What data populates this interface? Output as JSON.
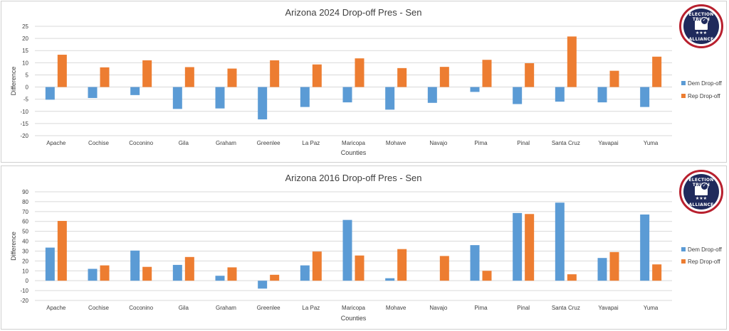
{
  "charts": [
    {
      "id": "top",
      "logo_text": {
        "top": "ELECTION TRUTH",
        "bottom": "ALLIANCE",
        "icon": "ballot-box-icon"
      },
      "chart_data": {
        "type": "bar",
        "title": "Arizona 2024 Drop-off Pres - Sen",
        "xlabel": "Counties",
        "ylabel": "Difference",
        "ylim": [
          -20,
          25
        ],
        "yticks": [
          25,
          20,
          15,
          10,
          5,
          0,
          -5,
          -10,
          -15,
          -20
        ],
        "categories": [
          "Apache",
          "Cochise",
          "Coconino",
          "Gila",
          "Graham",
          "Greenlee",
          "La Paz",
          "Maricopa",
          "Mohave",
          "Navajo",
          "Pima",
          "Pinal",
          "Santa Cruz",
          "Yavapai",
          "Yuma"
        ],
        "series": [
          {
            "name": "Dem Drop-off",
            "color": "#5b9bd5",
            "values": [
              -5.2,
              -4.5,
              -3.3,
              -9,
              -8.8,
              -13.3,
              -8.2,
              -6.3,
              -9.3,
              -6.5,
              -2,
              -7,
              -6,
              -6.3,
              -8.2
            ]
          },
          {
            "name": "Rep Drop-off",
            "color": "#ed7d31",
            "values": [
              13.3,
              8.1,
              11,
              8.2,
              7.6,
              11,
              9.3,
              11.8,
              7.8,
              8.3,
              11.2,
              9.8,
              20.8,
              6.7,
              12.5
            ]
          }
        ],
        "legend": "right"
      }
    },
    {
      "id": "bottom",
      "logo_text": {
        "top": "ELECTION TRUTH",
        "bottom": "ALLIANCE",
        "icon": "ballot-box-icon"
      },
      "chart_data": {
        "type": "bar",
        "title": "Arizona 2016 Drop-off Pres - Sen",
        "xlabel": "Counties",
        "ylabel": "Difference",
        "ylim": [
          -20,
          90
        ],
        "yticks": [
          90,
          80,
          70,
          60,
          50,
          40,
          30,
          20,
          10,
          0,
          -10,
          -20
        ],
        "categories": [
          "Apache",
          "Cochise",
          "Coconino",
          "Gila",
          "Graham",
          "Greenlee",
          "La Paz",
          "Maricopa",
          "Mohave",
          "Navajo",
          "Pima",
          "Pinal",
          "Santa Cruz",
          "Yavapai",
          "Yuma"
        ],
        "series": [
          {
            "name": "Dem Drop-off",
            "color": "#5b9bd5",
            "values": [
              33.5,
              12,
              30.5,
              16,
              5,
              -8,
              15.5,
              61.5,
              2.5,
              0,
              36,
              68.5,
              79,
              23,
              67
            ]
          },
          {
            "name": "Rep Drop-off",
            "color": "#ed7d31",
            "values": [
              60.5,
              15.5,
              14,
              24,
              13.5,
              6,
              29.5,
              25.5,
              32,
              25,
              10,
              67.5,
              6.5,
              29,
              16.5
            ]
          }
        ],
        "legend": "right"
      }
    }
  ]
}
